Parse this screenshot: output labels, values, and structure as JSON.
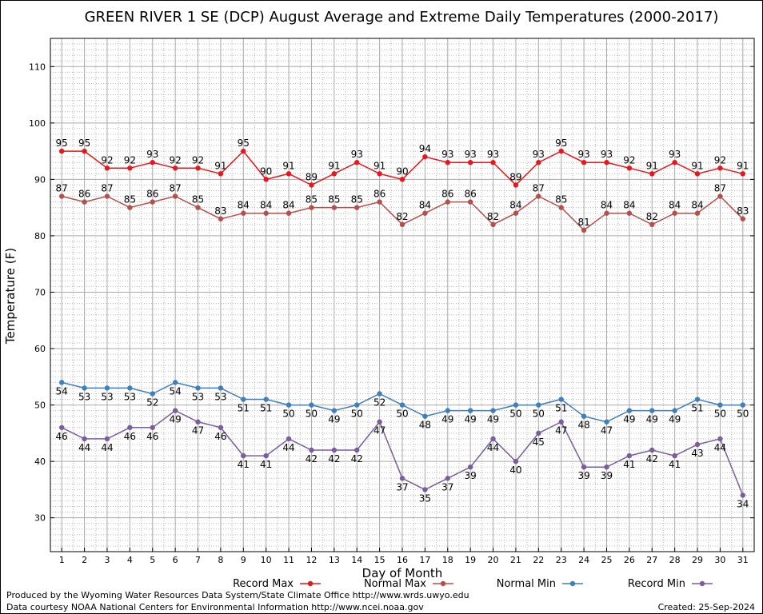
{
  "chart_data": {
    "type": "line",
    "title": "GREEN RIVER 1 SE (DCP) August Average and Extreme Daily Temperatures (2000-2017)",
    "xlabel": "Day of Month",
    "ylabel": "Temperature (F)",
    "xlim": [
      0.5,
      31.5
    ],
    "ylim": [
      24,
      115
    ],
    "yticks": [
      30,
      40,
      50,
      60,
      70,
      80,
      90,
      100,
      110
    ],
    "x": [
      1,
      2,
      3,
      4,
      5,
      6,
      7,
      8,
      9,
      10,
      11,
      12,
      13,
      14,
      15,
      16,
      17,
      18,
      19,
      20,
      21,
      22,
      23,
      24,
      25,
      26,
      27,
      28,
      29,
      30,
      31
    ],
    "x_tick_labels": [
      "1",
      "2",
      "3",
      "4",
      "5",
      "6",
      "7",
      "8",
      "9",
      "10",
      "11",
      "12",
      "13",
      "14",
      "15",
      "16",
      "17",
      "18",
      "19",
      "20",
      "21",
      "22",
      "23",
      "24",
      "25",
      "26",
      "27",
      "28",
      "29",
      "30",
      "31"
    ],
    "y_tick_labels": [
      "30",
      "40",
      "50",
      "60",
      "70",
      "80",
      "90",
      "100",
      "110"
    ],
    "grid": true,
    "legend_position": "bottom",
    "series": [
      {
        "name": "Record Max",
        "color": "#e8161d",
        "label_position": "above",
        "values": [
          95,
          95,
          92,
          92,
          93,
          92,
          92,
          91,
          95,
          90,
          91,
          89,
          91,
          93,
          91,
          90,
          94,
          93,
          93,
          93,
          89,
          93,
          95,
          93,
          93,
          92,
          91,
          93,
          91,
          92,
          91
        ],
        "labels": [
          "95",
          "95",
          "92",
          "92",
          "93",
          "92",
          "92",
          "91",
          "95",
          "90",
          "91",
          "89",
          "91",
          "93",
          "91",
          "90",
          "94",
          "93",
          "93",
          "93",
          "89",
          "93",
          "95",
          "93",
          "93",
          "92",
          "91",
          "93",
          "91",
          "92",
          "91"
        ]
      },
      {
        "name": "Normal Max",
        "color": "#b54f4b",
        "label_position": "above",
        "values": [
          87,
          86,
          87,
          85,
          86,
          87,
          85,
          83,
          84,
          84,
          84,
          85,
          85,
          85,
          86,
          82,
          84,
          86,
          86,
          82,
          84,
          87,
          85,
          81,
          84,
          84,
          82,
          84,
          84,
          87,
          83
        ],
        "labels": [
          "87",
          "86",
          "87",
          "85",
          "86",
          "87",
          "85",
          "83",
          "84",
          "84",
          "84",
          "85",
          "85",
          "85",
          "86",
          "82",
          "84",
          "86",
          "86",
          "82",
          "84",
          "87",
          "85",
          "81",
          "84",
          "84",
          "82",
          "84",
          "84",
          "87",
          "83"
        ]
      },
      {
        "name": "Normal Min",
        "color": "#3f7fbd",
        "label_position": "below",
        "values": [
          54,
          53,
          53,
          53,
          52,
          54,
          53,
          53,
          51,
          51,
          50,
          50,
          49,
          50,
          52,
          50,
          48,
          49,
          49,
          49,
          50,
          50,
          51,
          48,
          47,
          49,
          49,
          49,
          51,
          50,
          50
        ],
        "labels": [
          "54",
          "53",
          "53",
          "53",
          "52",
          "54",
          "53",
          "53",
          "51",
          "51",
          "50",
          "50",
          "49",
          "50",
          "52",
          "50",
          "48",
          "49",
          "49",
          "49",
          "50",
          "50",
          "51",
          "48",
          "47",
          "49",
          "49",
          "49",
          "51",
          "50",
          "50"
        ]
      },
      {
        "name": "Record Min",
        "color": "#7a5d9c",
        "label_position": "below",
        "values": [
          46,
          44,
          44,
          46,
          46,
          49,
          47,
          46,
          41,
          41,
          44,
          42,
          42,
          42,
          47,
          37,
          35,
          37,
          39,
          44,
          40,
          45,
          47,
          39,
          39,
          41,
          42,
          41,
          43,
          44,
          34
        ],
        "labels": [
          "46",
          "44",
          "44",
          "46",
          "46",
          "49",
          "47",
          "46",
          "41",
          "41",
          "44",
          "42",
          "42",
          "42",
          "47",
          "37",
          "35",
          "37",
          "39",
          "44",
          "40",
          "45",
          "47",
          "39",
          "39",
          "41",
          "42",
          "41",
          "43",
          "44",
          "34"
        ]
      }
    ]
  },
  "footer": {
    "produced_by": "Produced by the Wyoming Water Resources Data System/State Climate Office http://www.wrds.uwyo.edu",
    "courtesy": "Data courtesy NOAA National Centers for Environmental Information http://www.ncei.noaa.gov",
    "created": "Created:  25-Sep-2024"
  }
}
